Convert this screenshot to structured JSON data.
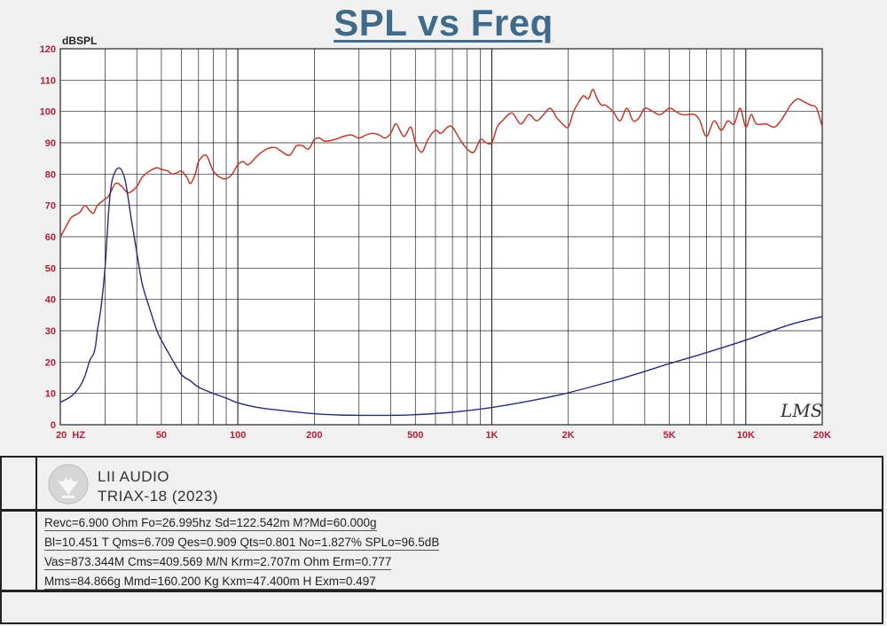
{
  "title": "SPL vs Freq",
  "watermark": "LMS",
  "brand": {
    "name": "LII AUDIO",
    "model": "TRIAX-18 (2023)"
  },
  "parameters": [
    "Revc=6.900 Ohm Fo=26.995hz Sd=122.542m M?Md=60.000g",
    "Bl=10.451 T Qms=6.709 Qes=0.909 Qts=0.801 No=1.827% SPLo=96.5dB",
    "Vas=873.344M Cms=409.569 M/N Krm=2.707m Ohm Erm=0.777",
    "Mms=84.866g Mmd=160.200 Kg Kxm=47.400m H Exm=0.497"
  ],
  "colors": {
    "spl": "#c0392b",
    "impedance": "#2a2a7a",
    "axis_text": "#b0203a",
    "title": "#3f6a8a"
  },
  "chart_data": {
    "type": "line",
    "title": "SPL vs Freq",
    "ylabel": "dBSPL",
    "xscale": "log",
    "xlim": [
      20,
      20000
    ],
    "ylim": [
      0,
      120
    ],
    "grid": true,
    "yticks": [
      0,
      10,
      20,
      30,
      40,
      50,
      60,
      70,
      80,
      90,
      100,
      110,
      120
    ],
    "xticks": [
      {
        "value": 20,
        "label": "20  HZ"
      },
      {
        "value": 50,
        "label": "50"
      },
      {
        "value": 100,
        "label": "100"
      },
      {
        "value": 200,
        "label": "200"
      },
      {
        "value": 500,
        "label": "500"
      },
      {
        "value": 1000,
        "label": "1K"
      },
      {
        "value": 2000,
        "label": "2K"
      },
      {
        "value": 5000,
        "label": "5K"
      },
      {
        "value": 10000,
        "label": "10K"
      },
      {
        "value": 20000,
        "label": "20K"
      }
    ],
    "series": [
      {
        "key": "spl",
        "x": [
          20,
          21,
          22,
          23,
          24,
          25,
          26,
          27,
          28,
          30,
          31,
          33,
          35,
          37,
          40,
          42,
          45,
          48,
          50,
          53,
          55,
          58,
          60,
          63,
          65,
          68,
          70,
          75,
          80,
          85,
          90,
          95,
          100,
          105,
          110,
          120,
          130,
          140,
          150,
          160,
          170,
          180,
          190,
          200,
          210,
          220,
          240,
          260,
          280,
          300,
          320,
          340,
          360,
          380,
          400,
          420,
          450,
          480,
          500,
          530,
          560,
          600,
          630,
          670,
          700,
          750,
          800,
          850,
          900,
          950,
          1000,
          1050,
          1100,
          1200,
          1300,
          1400,
          1500,
          1600,
          1700,
          1800,
          1900,
          2000,
          2100,
          2200,
          2300,
          2400,
          2500,
          2600,
          2700,
          2800,
          3000,
          3200,
          3400,
          3600,
          3800,
          4000,
          4300,
          4600,
          5000,
          5300,
          5600,
          6000,
          6300,
          6600,
          7000,
          7500,
          8000,
          8500,
          9000,
          9500,
          10000,
          10500,
          11000,
          12000,
          13000,
          14000,
          15000,
          16000,
          17000,
          18000,
          19000,
          20000
        ],
        "y": [
          60,
          63,
          66,
          67,
          68,
          70,
          68.5,
          67.5,
          70,
          72,
          73,
          77,
          76,
          74,
          76,
          79,
          81,
          82,
          81.5,
          81,
          80,
          80.5,
          81,
          79,
          77,
          80,
          84,
          86,
          81,
          79,
          78.5,
          80,
          83,
          84,
          83,
          86,
          88,
          88.5,
          87,
          86,
          89,
          89,
          88,
          91,
          91.5,
          90.5,
          91,
          92,
          92.5,
          91.5,
          92.5,
          93,
          92.5,
          91.5,
          93,
          96,
          92,
          95,
          90,
          87,
          91,
          94,
          93,
          95,
          95,
          91,
          88,
          87,
          91,
          90,
          90,
          95,
          97,
          99.5,
          96,
          99,
          97,
          99,
          101,
          98,
          96,
          95,
          100,
          103,
          105,
          104,
          107,
          104,
          102,
          102,
          100,
          97,
          101,
          97,
          98,
          101,
          100,
          99,
          101,
          100,
          99,
          99,
          99,
          97,
          92,
          97,
          94,
          97,
          96,
          101,
          95,
          99,
          96,
          96,
          95,
          98,
          102,
          104,
          103,
          102,
          101,
          95
        ]
      },
      {
        "key": "impedance",
        "x": [
          20,
          21,
          22,
          23,
          24,
          25,
          26,
          26.5,
          27,
          27.5,
          28,
          29,
          30,
          31,
          32,
          34,
          36,
          38,
          40,
          42,
          45,
          48,
          50,
          55,
          60,
          65,
          70,
          80,
          90,
          100,
          120,
          150,
          200,
          250,
          300,
          400,
          500,
          700,
          1000,
          1500,
          2000,
          3000,
          4000,
          5000,
          7000,
          10000,
          15000,
          20000
        ],
        "y": [
          7.2,
          8,
          9,
          10.5,
          12.5,
          15.5,
          20,
          21.5,
          22.5,
          25,
          30,
          38,
          50,
          68,
          78,
          82,
          78,
          66,
          55,
          45,
          37,
          30,
          27,
          21,
          16,
          14,
          12,
          10,
          8.5,
          7,
          5.5,
          4.5,
          3.5,
          3.1,
          3,
          3,
          3.2,
          4,
          5.5,
          8,
          10.2,
          14,
          17,
          19.5,
          23,
          27,
          32,
          34.5
        ]
      }
    ]
  }
}
